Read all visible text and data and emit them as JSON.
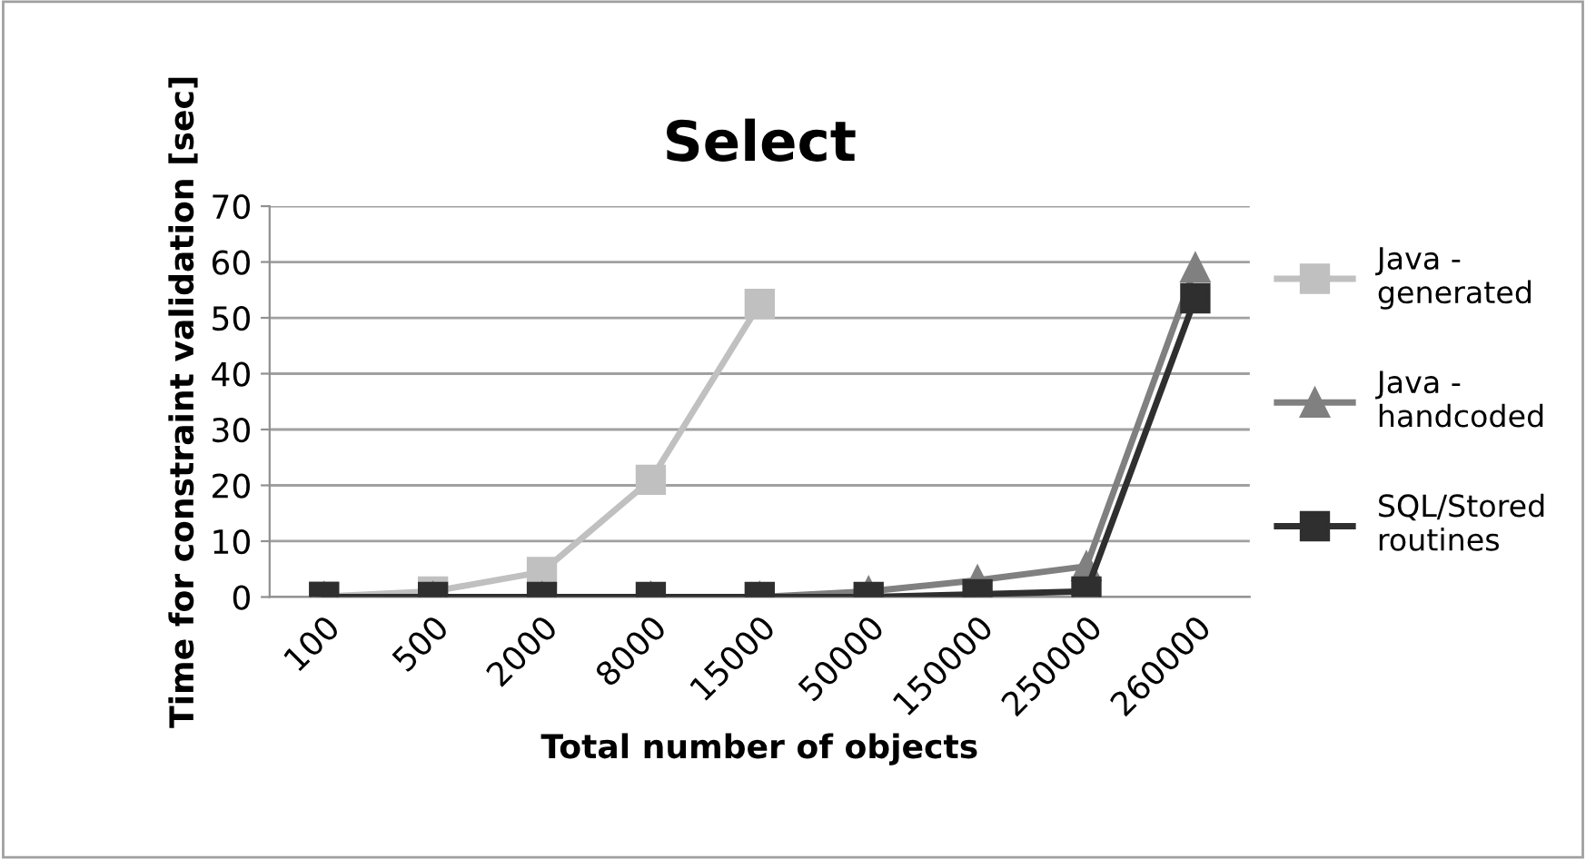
{
  "chart_data": {
    "type": "line",
    "title": "Select",
    "xlabel": "Total number of objects",
    "ylabel": "Time for constraint validation [sec]",
    "categories": [
      "100",
      "500",
      "2000",
      "8000",
      "15000",
      "50000",
      "150000",
      "250000",
      "260000"
    ],
    "series": [
      {
        "name": "Java - generated",
        "color": "#c0c0c0",
        "marker": "square",
        "values": [
          0.1,
          1,
          4.5,
          21,
          52.5,
          null,
          null,
          null,
          null
        ]
      },
      {
        "name": "Java - handcoded",
        "color": "#808080",
        "marker": "triangle",
        "values": [
          0,
          0,
          0,
          0,
          0,
          1,
          3,
          5.5,
          59
        ]
      },
      {
        "name": "SQL/Stored routines",
        "color": "#2f2f2f",
        "marker": "square",
        "values": [
          0,
          0,
          0,
          0,
          0,
          0,
          0.5,
          1,
          53.5
        ]
      }
    ],
    "ylim": [
      0,
      70
    ],
    "yticks": [
      0,
      10,
      20,
      30,
      40,
      50,
      60,
      70
    ],
    "grid": "y",
    "legend": "right"
  }
}
